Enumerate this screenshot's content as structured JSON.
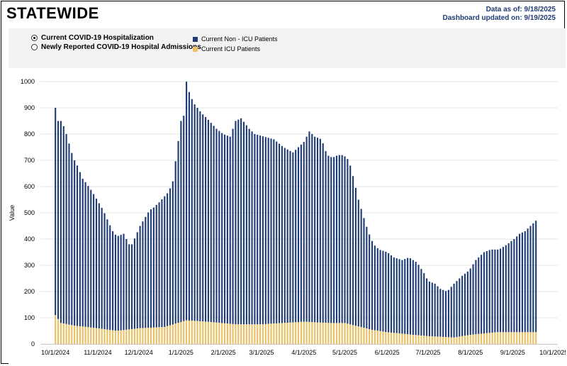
{
  "header": {
    "title": "STATEWIDE",
    "data_as_of": "Data as of: 9/18/2025",
    "dashboard_updated": "Dashboard updated on: 9/19/2025"
  },
  "controls": {
    "options": [
      {
        "label": "Current COVID-19 Hospitalization",
        "selected": true
      },
      {
        "label": "Newly Reported COVID-19 Hospital Admissions",
        "selected": false
      }
    ]
  },
  "colors": {
    "non_icu": "#1f3b73",
    "icu": "#e8c166"
  },
  "chart_data": {
    "type": "bar",
    "stacked": true,
    "ylabel": "Value",
    "ylim": [
      0,
      1000
    ],
    "yticks": [
      "0",
      "100",
      "200",
      "300",
      "400",
      "500",
      "600",
      "700",
      "800",
      "900",
      "1000"
    ],
    "xticks": [
      "10/1/2024",
      "11/1/2024",
      "12/1/2024",
      "1/1/2025",
      "2/1/2025",
      "3/1/2025",
      "4/1/2025",
      "5/1/2025",
      "6/1/2025",
      "7/1/2025",
      "8/1/2025",
      "9/1/2025",
      "10/1/2025"
    ],
    "grid": true,
    "legend_position": "top",
    "series": [
      {
        "name": "Current Non - ICU Patients",
        "color": "#1f3b73"
      },
      {
        "name": "Current ICU Patients",
        "color": "#e8c166"
      }
    ],
    "total_keypoints": [
      [
        "2024-10-01",
        900
      ],
      [
        "2024-10-02",
        870
      ],
      [
        "2024-10-03",
        850
      ],
      [
        "2024-10-06",
        850
      ],
      [
        "2024-10-07",
        830
      ],
      [
        "2024-10-09",
        800
      ],
      [
        "2024-10-14",
        710
      ],
      [
        "2024-10-17",
        680
      ],
      [
        "2024-10-21",
        630
      ],
      [
        "2024-10-24",
        610
      ],
      [
        "2024-10-28",
        580
      ],
      [
        "2024-11-05",
        510
      ],
      [
        "2024-11-08",
        475
      ],
      [
        "2024-11-12",
        430
      ],
      [
        "2024-11-15",
        410
      ],
      [
        "2024-11-20",
        420
      ],
      [
        "2024-11-23",
        390
      ],
      [
        "2024-11-25",
        370
      ],
      [
        "2024-11-27",
        390
      ],
      [
        "2024-12-02",
        450
      ],
      [
        "2024-12-09",
        510
      ],
      [
        "2024-12-12",
        520
      ],
      [
        "2024-12-16",
        540
      ],
      [
        "2024-12-23",
        580
      ],
      [
        "2024-12-26",
        620
      ],
      [
        "2025-01-01",
        850
      ],
      [
        "2025-01-03",
        870
      ],
      [
        "2025-01-05",
        1000
      ],
      [
        "2025-01-07",
        960
      ],
      [
        "2025-01-10",
        920
      ],
      [
        "2025-01-13",
        900
      ],
      [
        "2025-01-16",
        880
      ],
      [
        "2025-01-20",
        860
      ],
      [
        "2025-01-27",
        820
      ],
      [
        "2025-02-01",
        800
      ],
      [
        "2025-02-06",
        790
      ],
      [
        "2025-02-10",
        850
      ],
      [
        "2025-02-14",
        860
      ],
      [
        "2025-02-20",
        820
      ],
      [
        "2025-02-24",
        800
      ],
      [
        "2025-03-03",
        790
      ],
      [
        "2025-03-10",
        780
      ],
      [
        "2025-03-17",
        750
      ],
      [
        "2025-03-24",
        730
      ],
      [
        "2025-03-28",
        750
      ],
      [
        "2025-04-01",
        770
      ],
      [
        "2025-04-05",
        810
      ],
      [
        "2025-04-09",
        790
      ],
      [
        "2025-04-14",
        780
      ],
      [
        "2025-04-18",
        720
      ],
      [
        "2025-04-22",
        710
      ],
      [
        "2025-04-26",
        720
      ],
      [
        "2025-04-30",
        720
      ],
      [
        "2025-05-04",
        700
      ],
      [
        "2025-05-07",
        640
      ],
      [
        "2025-05-11",
        550
      ],
      [
        "2025-05-15",
        480
      ],
      [
        "2025-05-18",
        430
      ],
      [
        "2025-05-22",
        380
      ],
      [
        "2025-05-26",
        360
      ],
      [
        "2025-06-01",
        350
      ],
      [
        "2025-06-06",
        330
      ],
      [
        "2025-06-12",
        320
      ],
      [
        "2025-06-17",
        330
      ],
      [
        "2025-06-23",
        310
      ],
      [
        "2025-06-28",
        270
      ],
      [
        "2025-07-01",
        240
      ],
      [
        "2025-07-06",
        230
      ],
      [
        "2025-07-10",
        210
      ],
      [
        "2025-07-15",
        200
      ],
      [
        "2025-07-20",
        230
      ],
      [
        "2025-07-26",
        260
      ],
      [
        "2025-07-31",
        280
      ],
      [
        "2025-08-05",
        320
      ],
      [
        "2025-08-11",
        350
      ],
      [
        "2025-08-16",
        360
      ],
      [
        "2025-08-22",
        360
      ],
      [
        "2025-08-28",
        380
      ],
      [
        "2025-09-02",
        400
      ],
      [
        "2025-09-06",
        420
      ],
      [
        "2025-09-10",
        430
      ],
      [
        "2025-09-14",
        450
      ],
      [
        "2025-09-18",
        470
      ]
    ],
    "icu_keypoints": [
      [
        "2024-10-01",
        110
      ],
      [
        "2024-10-05",
        80
      ],
      [
        "2024-10-15",
        70
      ],
      [
        "2024-11-01",
        60
      ],
      [
        "2024-11-15",
        50
      ],
      [
        "2024-12-01",
        60
      ],
      [
        "2024-12-20",
        65
      ],
      [
        "2025-01-05",
        90
      ],
      [
        "2025-01-20",
        85
      ],
      [
        "2025-02-10",
        75
      ],
      [
        "2025-03-01",
        75
      ],
      [
        "2025-04-01",
        85
      ],
      [
        "2025-04-20",
        80
      ],
      [
        "2025-05-01",
        80
      ],
      [
        "2025-05-20",
        55
      ],
      [
        "2025-06-01",
        45
      ],
      [
        "2025-06-20",
        35
      ],
      [
        "2025-07-01",
        30
      ],
      [
        "2025-07-20",
        25
      ],
      [
        "2025-08-01",
        35
      ],
      [
        "2025-08-20",
        45
      ],
      [
        "2025-09-01",
        45
      ],
      [
        "2025-09-18",
        45
      ]
    ],
    "bar_day_interval": 2,
    "x_range": [
      "2024-09-20",
      "2025-10-04"
    ]
  }
}
